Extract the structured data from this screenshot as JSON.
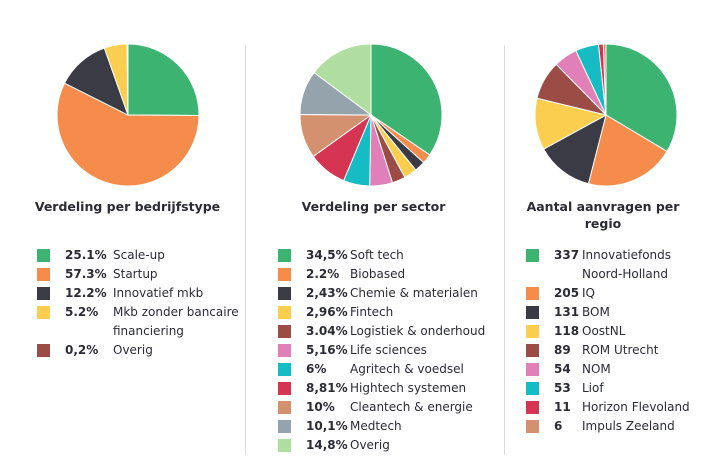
{
  "chart_data": [
    {
      "type": "pie",
      "title": "Verdeling per bedrijfstype",
      "slices": [
        {
          "label": "Scale-up",
          "value": 25.1,
          "value_label": "25.1%",
          "color": "#3cb371"
        },
        {
          "label": "Startup",
          "value": 57.3,
          "value_label": "57.3%",
          "color": "#f58c4b"
        },
        {
          "label": "Innovatief mkb",
          "value": 12.2,
          "value_label": "12.2%",
          "color": "#3b3b46"
        },
        {
          "label": "Mkb zonder bancaire financiering",
          "value": 5.2,
          "value_label": "5.2%",
          "color": "#fcce4f"
        },
        {
          "label": "Overig",
          "value": 0.2,
          "value_label": "0,2%",
          "color": "#9a4c45"
        }
      ]
    },
    {
      "type": "pie",
      "title": "Verdeling per sector",
      "slices": [
        {
          "label": "Soft tech",
          "value": 34.5,
          "value_label": "34,5%",
          "color": "#3cb371"
        },
        {
          "label": "Biobased",
          "value": 2.2,
          "value_label": "2.2%",
          "color": "#f58c4b"
        },
        {
          "label": "Chemie & materialen",
          "value": 2.43,
          "value_label": "2,43%",
          "color": "#3b3b46"
        },
        {
          "label": "Fintech",
          "value": 2.96,
          "value_label": "2,96%",
          "color": "#fcce4f"
        },
        {
          "label": "Logistiek & onderhoud",
          "value": 3.04,
          "value_label": "3.04%",
          "color": "#9a4c45"
        },
        {
          "label": "Life sciences",
          "value": 5.16,
          "value_label": "5,16%",
          "color": "#e07fb8"
        },
        {
          "label": "Agritech & voedsel",
          "value": 6,
          "value_label": "6%",
          "color": "#16bcc4"
        },
        {
          "label": "Hightech systemen",
          "value": 8.81,
          "value_label": "8,81%",
          "color": "#d53553"
        },
        {
          "label": "Cleantech & energie",
          "value": 10,
          "value_label": "10%",
          "color": "#d39170"
        },
        {
          "label": "Medtech",
          "value": 10.1,
          "value_label": "10,1%",
          "color": "#94a3ac"
        },
        {
          "label": "Overig",
          "value": 14.8,
          "value_label": "14,8%",
          "color": "#b0dea0"
        }
      ]
    },
    {
      "type": "pie",
      "title": "Aantal aanvragen per regio",
      "slices": [
        {
          "label": "Innovatiefonds Noord-Holland",
          "value": 337,
          "value_label": "337",
          "color": "#3cb371"
        },
        {
          "label": "IQ",
          "value": 205,
          "value_label": "205",
          "color": "#f58c4b"
        },
        {
          "label": "BOM",
          "value": 131,
          "value_label": "131",
          "color": "#3b3b46"
        },
        {
          "label": "OostNL",
          "value": 118,
          "value_label": "118",
          "color": "#fcce4f"
        },
        {
          "label": "ROM Utrecht",
          "value": 89,
          "value_label": "89",
          "color": "#9a4c45"
        },
        {
          "label": "NOM",
          "value": 54,
          "value_label": "54",
          "color": "#e07fb8"
        },
        {
          "label": "Liof",
          "value": 53,
          "value_label": "53",
          "color": "#16bcc4"
        },
        {
          "label": "Horizon Flevoland",
          "value": 11,
          "value_label": "11",
          "color": "#d53553"
        },
        {
          "label": "Impuls Zeeland",
          "value": 6,
          "value_label": "6",
          "color": "#d39170"
        }
      ]
    }
  ]
}
